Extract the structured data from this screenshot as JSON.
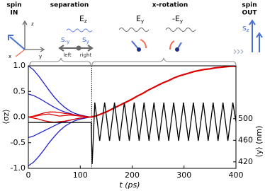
{
  "schematic": {
    "spin_in": {
      "top": "spin",
      "bottom": "IN"
    },
    "separation": "separation",
    "x_rotation": "x-rotation",
    "spin_out": {
      "top": "spin",
      "bottom": "OUT"
    },
    "axes": {
      "z": "z",
      "y": "y",
      "x": "x"
    },
    "field_z": {
      "base": "E",
      "sub": "z"
    },
    "spin_minus_y": {
      "base": "s",
      "sub": "-y"
    },
    "spin_y": {
      "base": "s",
      "sub": "y"
    },
    "left": "left",
    "right": "right",
    "field_y": {
      "base": "E",
      "sub": "y"
    },
    "field_minus_y": {
      "base": "-E",
      "sub": "y"
    },
    "spin_z": {
      "base": "s",
      "sub": "z"
    }
  },
  "chart_data": {
    "type": "line",
    "xlabel": "t (ps)",
    "ylabel": "⟨σz⟩",
    "y2label": "⟨y⟩ (nm)",
    "xlim": [
      0,
      400
    ],
    "xticks": [
      0,
      100,
      200,
      300,
      400
    ],
    "ylim": [
      -1,
      1
    ],
    "yticks": [
      {
        "value": 1,
        "label": "1.0"
      },
      {
        "value": 0.5,
        "label": "0.5"
      },
      {
        "value": 0,
        "label": "0.0"
      },
      {
        "value": -0.5,
        "label": "-0.5"
      },
      {
        "value": -1,
        "label": "-1.0"
      }
    ],
    "y2lim": [
      408,
      598
    ],
    "y2ticks": [
      420,
      460,
      500
    ],
    "vline": 122,
    "series": [
      {
        "color": "#2222cc",
        "x": [
          0,
          10,
          20,
          30,
          40,
          50,
          60,
          70,
          80,
          90,
          100,
          110,
          120
        ],
        "values": [
          1.0,
          0.92,
          0.8,
          0.66,
          0.52,
          0.39,
          0.28,
          0.19,
          0.12,
          0.07,
          0.04,
          0.02,
          0
        ]
      },
      {
        "color": "#2222cc",
        "x": [
          0,
          10,
          20,
          30,
          40,
          50,
          60,
          70,
          80,
          90,
          100,
          110,
          120
        ],
        "values": [
          0.45,
          0.42,
          0.37,
          0.31,
          0.25,
          0.19,
          0.14,
          0.1,
          0.07,
          0.04,
          0.02,
          0.01,
          0
        ]
      },
      {
        "color": "#2222cc",
        "x": [
          0,
          10,
          20,
          30,
          40,
          50,
          60,
          70,
          80,
          90,
          100,
          110,
          120
        ],
        "values": [
          -0.4,
          -0.37,
          -0.32,
          -0.27,
          -0.22,
          -0.17,
          -0.12,
          -0.09,
          -0.06,
          -0.04,
          -0.02,
          -0.01,
          0
        ]
      },
      {
        "color": "#2222cc",
        "x": [
          0,
          10,
          20,
          30,
          40,
          50,
          60,
          70,
          80,
          90,
          100,
          110,
          120
        ],
        "values": [
          -0.95,
          -0.88,
          -0.77,
          -0.64,
          -0.5,
          -0.38,
          -0.27,
          -0.18,
          -0.12,
          -0.07,
          -0.04,
          -0.02,
          0
        ]
      },
      {
        "color": "#e00000",
        "x": [
          0,
          10,
          20,
          30,
          40,
          50,
          60,
          70,
          80,
          90,
          100,
          110,
          120
        ],
        "values": [
          0,
          0.02,
          0.05,
          0.08,
          0.1,
          0.1,
          0.09,
          0.07,
          0.06,
          0.04,
          0.03,
          0.01,
          0
        ]
      },
      {
        "color": "#e00000",
        "x": [
          0,
          10,
          20,
          30,
          40,
          50,
          60,
          70,
          80,
          90,
          100,
          110,
          120
        ],
        "values": [
          0,
          -0.02,
          -0.04,
          -0.07,
          -0.09,
          -0.1,
          -0.09,
          -0.08,
          -0.06,
          -0.04,
          -0.02,
          -0.01,
          0
        ]
      },
      {
        "color": "#e00000",
        "x": [
          0,
          10,
          20,
          30,
          40,
          50,
          60,
          70,
          80,
          90,
          100,
          110,
          120
        ],
        "values": [
          0,
          0.01,
          0.03,
          0.05,
          0.06,
          0.04,
          0.02,
          0.03,
          0.04,
          0.03,
          0.02,
          0.01,
          0
        ]
      },
      {
        "color": "#e00000",
        "x": [
          120,
          130,
          140,
          150,
          160,
          170,
          180,
          190,
          200,
          210,
          220,
          230,
          240,
          250,
          260,
          270,
          280,
          290,
          300,
          310,
          320,
          330,
          340,
          350,
          360,
          370,
          380,
          390,
          400
        ],
        "values": [
          0,
          0.02,
          0.06,
          0.1,
          0.15,
          0.2,
          0.25,
          0.3,
          0.35,
          0.41,
          0.46,
          0.52,
          0.57,
          0.62,
          0.67,
          0.71,
          0.76,
          0.8,
          0.83,
          0.86,
          0.89,
          0.91,
          0.93,
          0.94,
          0.96,
          0.97,
          0.98,
          0.99,
          0.99
        ],
        "width": 2.2
      },
      {
        "color": "#000000",
        "axis": "y2",
        "x": [
          0,
          121,
          123,
          128,
          137.5,
          147,
          156.5,
          166,
          175.5,
          185,
          194.5,
          204,
          213.5,
          223,
          232.5,
          242,
          251.5,
          261,
          270.5,
          280,
          289.5,
          299,
          308.5,
          318,
          327.5,
          337,
          346.5,
          356,
          365.5,
          375,
          384.5,
          394,
          400
        ],
        "values": [
          493,
          493,
          416,
          530,
          459,
          530,
          459,
          530,
          459,
          530,
          459,
          530,
          459,
          530,
          459,
          530,
          459,
          530,
          459,
          530,
          459,
          530,
          459,
          530,
          459,
          530,
          459,
          530,
          459,
          530,
          459,
          530,
          495
        ]
      }
    ]
  }
}
